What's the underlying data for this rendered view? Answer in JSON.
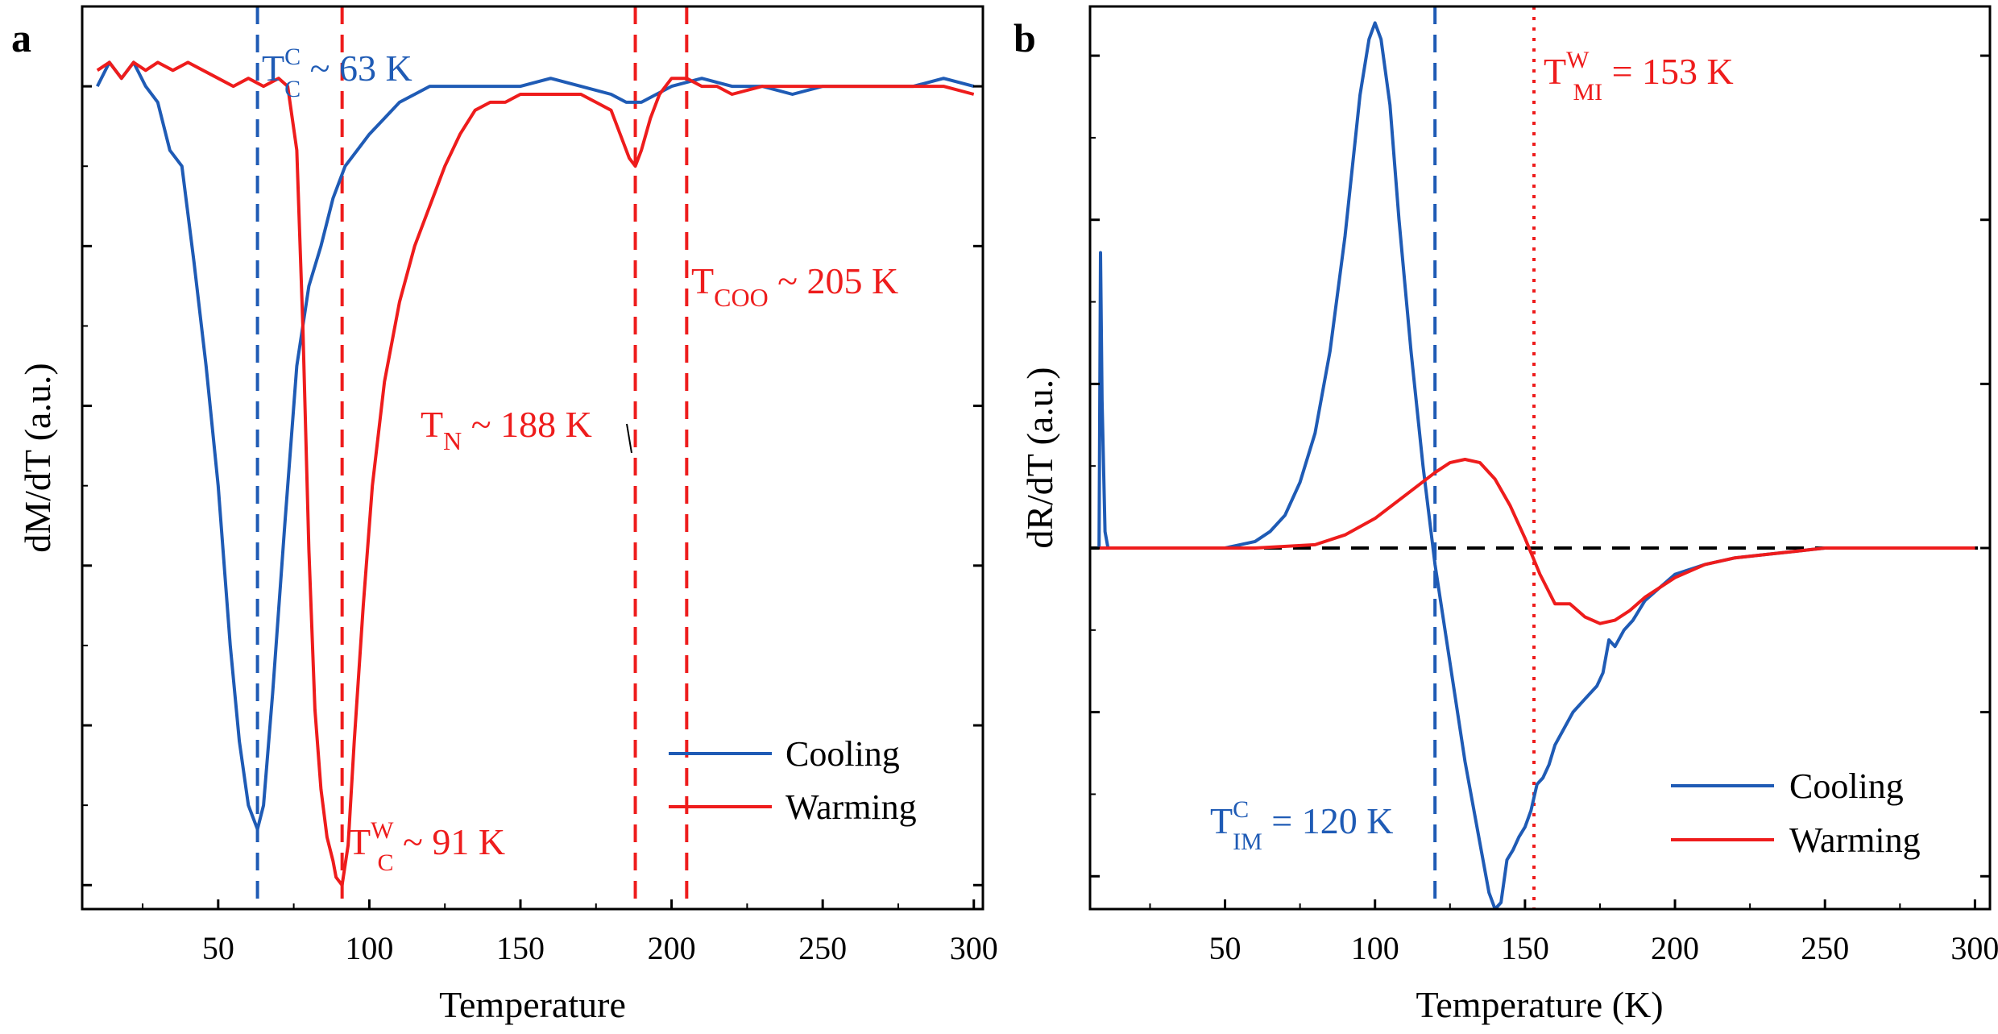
{
  "chart_data": [
    {
      "panel_label": "a",
      "type": "line",
      "xlabel": "Temperature",
      "ylabel": "dM/dT (a.u.)",
      "xlim": [
        5,
        303
      ],
      "ylim": [
        -1.03,
        0.1
      ],
      "xticks": [
        50,
        100,
        150,
        200,
        250,
        300
      ],
      "xtick_labels": [
        "50",
        "100",
        "150",
        "200",
        "250",
        "300"
      ],
      "yticks": [
        -1.0,
        -0.8,
        -0.6,
        -0.4,
        -0.2,
        0.0
      ],
      "legend": {
        "position": "bottom-right",
        "entries": [
          "Cooling",
          "Warming"
        ]
      },
      "colors": {
        "cooling": "#1f5bb5",
        "warming": "#ee1c1c"
      },
      "series": [
        {
          "name": "Cooling",
          "color": "#1f5bb5",
          "x": [
            10,
            14,
            18,
            22,
            26,
            30,
            34,
            38,
            42,
            46,
            50,
            54,
            57,
            60,
            62,
            63,
            65,
            68,
            72,
            76,
            80,
            84,
            88,
            92,
            96,
            100,
            105,
            110,
            115,
            120,
            130,
            140,
            150,
            160,
            170,
            180,
            185,
            190,
            195,
            200,
            210,
            220,
            230,
            240,
            250,
            260,
            270,
            280,
            290,
            300
          ],
          "y": [
            0.0,
            0.03,
            0.01,
            0.03,
            0.0,
            -0.02,
            -0.08,
            -0.1,
            -0.22,
            -0.35,
            -0.5,
            -0.7,
            -0.82,
            -0.9,
            -0.92,
            -0.93,
            -0.9,
            -0.76,
            -0.55,
            -0.35,
            -0.25,
            -0.2,
            -0.14,
            -0.1,
            -0.08,
            -0.06,
            -0.04,
            -0.02,
            -0.01,
            0.0,
            0.0,
            0.0,
            0.0,
            0.01,
            0.0,
            -0.01,
            -0.02,
            -0.02,
            -0.01,
            0.0,
            0.01,
            0.0,
            0.0,
            -0.01,
            0.0,
            0.0,
            0.0,
            0.0,
            0.01,
            0.0
          ]
        },
        {
          "name": "Warming",
          "color": "#ee1c1c",
          "x": [
            10,
            14,
            18,
            22,
            26,
            30,
            35,
            40,
            45,
            50,
            55,
            60,
            65,
            70,
            73,
            76,
            78,
            80,
            82,
            84,
            86,
            88,
            89,
            91,
            93,
            95,
            98,
            101,
            105,
            110,
            115,
            120,
            125,
            130,
            135,
            140,
            145,
            150,
            160,
            170,
            175,
            180,
            183,
            186,
            188,
            190,
            193,
            196,
            200,
            203,
            205,
            210,
            215,
            220,
            230,
            240,
            250,
            260,
            270,
            280,
            290,
            300
          ],
          "y": [
            0.02,
            0.03,
            0.01,
            0.03,
            0.02,
            0.03,
            0.02,
            0.03,
            0.02,
            0.01,
            0.0,
            0.01,
            0.0,
            0.01,
            0.0,
            -0.08,
            -0.3,
            -0.58,
            -0.78,
            -0.88,
            -0.94,
            -0.97,
            -0.99,
            -1.0,
            -0.95,
            -0.82,
            -0.65,
            -0.5,
            -0.37,
            -0.27,
            -0.2,
            -0.15,
            -0.1,
            -0.06,
            -0.03,
            -0.02,
            -0.02,
            -0.01,
            -0.01,
            -0.01,
            -0.02,
            -0.03,
            -0.06,
            -0.09,
            -0.1,
            -0.08,
            -0.04,
            -0.01,
            0.01,
            0.01,
            0.01,
            0.0,
            0.0,
            -0.01,
            0.0,
            0.0,
            0.0,
            0.0,
            0.0,
            0.0,
            0.0,
            -0.01
          ]
        }
      ],
      "vlines": [
        {
          "x": 63,
          "color": "#1f5bb5",
          "style": "dashed"
        },
        {
          "x": 91,
          "color": "#ee1c1c",
          "style": "dashed"
        },
        {
          "x": 188,
          "color": "#ee1c1c",
          "style": "dashed"
        },
        {
          "x": 205,
          "color": "#ee1c1c",
          "style": "dashed"
        }
      ],
      "annotations": [
        {
          "name": "tc-cooling",
          "base": "T",
          "sub": "C",
          "sup": "C",
          "text": " ~ 63 K",
          "color": "#1f5bb5"
        },
        {
          "name": "tc-warming",
          "base": "T",
          "sub": "C",
          "sup": "W",
          "text": " ~ 91 K",
          "color": "#ee1c1c"
        },
        {
          "name": "tn",
          "base": "T",
          "sub": "N",
          "sup": "",
          "text": " ~ 188 K",
          "color": "#ee1c1c"
        },
        {
          "name": "tcoo",
          "base": "T",
          "sub": "COO",
          "sup": "",
          "text": " ~ 205 K",
          "color": "#ee1c1c"
        }
      ]
    },
    {
      "panel_label": "b",
      "type": "line",
      "xlabel": "Temperature (K)",
      "ylabel": "dR/dT (a.u.)",
      "xlim": [
        5,
        305
      ],
      "ylim": [
        -1.1,
        1.65
      ],
      "xticks": [
        50,
        100,
        150,
        200,
        250,
        300
      ],
      "xtick_labels": [
        "50",
        "100",
        "150",
        "200",
        "250",
        "300"
      ],
      "yticks": [
        -1.0,
        -0.5,
        0.0,
        0.5,
        1.0,
        1.5
      ],
      "legend": {
        "position": "bottom-right",
        "entries": [
          "Cooling",
          "Warming"
        ]
      },
      "colors": {
        "cooling": "#1f5bb5",
        "warming": "#ee1c1c"
      },
      "series": [
        {
          "name": "Cooling",
          "color": "#1f5bb5",
          "x": [
            8,
            8.5,
            9,
            10,
            11,
            15,
            20,
            30,
            40,
            50,
            55,
            60,
            65,
            70,
            75,
            80,
            85,
            90,
            95,
            98,
            100,
            102,
            105,
            108,
            112,
            116,
            120,
            125,
            130,
            135,
            138,
            140,
            142,
            144,
            146,
            148,
            150,
            152,
            154,
            156,
            158,
            160,
            163,
            166,
            170,
            174,
            176,
            178,
            180,
            183,
            186,
            190,
            195,
            200,
            210,
            220,
            230,
            240,
            250,
            260,
            270,
            280,
            290,
            300
          ],
          "y": [
            0.0,
            0.9,
            0.45,
            0.05,
            0.0,
            0.0,
            0.0,
            0.0,
            0.0,
            0.0,
            0.01,
            0.02,
            0.05,
            0.1,
            0.2,
            0.35,
            0.6,
            0.95,
            1.38,
            1.55,
            1.6,
            1.55,
            1.35,
            1.0,
            0.6,
            0.25,
            -0.05,
            -0.35,
            -0.65,
            -0.9,
            -1.05,
            -1.1,
            -1.08,
            -0.95,
            -0.92,
            -0.88,
            -0.85,
            -0.8,
            -0.72,
            -0.7,
            -0.66,
            -0.6,
            -0.55,
            -0.5,
            -0.46,
            -0.42,
            -0.38,
            -0.28,
            -0.3,
            -0.25,
            -0.22,
            -0.16,
            -0.12,
            -0.08,
            -0.05,
            -0.03,
            -0.02,
            -0.01,
            0.0,
            0.0,
            0.0,
            0.0,
            0.0,
            0.0
          ]
        },
        {
          "name": "Warming",
          "color": "#ee1c1c",
          "x": [
            8,
            20,
            40,
            60,
            80,
            90,
            100,
            110,
            120,
            125,
            130,
            135,
            140,
            145,
            150,
            155,
            160,
            165,
            170,
            175,
            180,
            185,
            190,
            200,
            210,
            220,
            230,
            240,
            250,
            260,
            280,
            300
          ],
          "y": [
            0.0,
            0.0,
            0.0,
            0.0,
            0.01,
            0.04,
            0.09,
            0.16,
            0.23,
            0.26,
            0.27,
            0.26,
            0.21,
            0.13,
            0.03,
            -0.08,
            -0.17,
            -0.17,
            -0.21,
            -0.23,
            -0.22,
            -0.19,
            -0.15,
            -0.09,
            -0.05,
            -0.03,
            -0.02,
            -0.01,
            0.0,
            0.0,
            0.0,
            0.0
          ]
        }
      ],
      "hlines": [
        {
          "y": 0,
          "color": "#000000",
          "style": "dashed"
        }
      ],
      "vlines": [
        {
          "x": 120,
          "color": "#1f5bb5",
          "style": "dashed"
        },
        {
          "x": 153,
          "color": "#ee1c1c",
          "style": "dotted"
        }
      ],
      "annotations": [
        {
          "name": "tmi-warming",
          "base": "T",
          "sub": "MI",
          "sup": "W",
          "text": " = 153 K",
          "color": "#ee1c1c"
        },
        {
          "name": "tim-cooling",
          "base": "T",
          "sub": "IM",
          "sup": "C",
          "text": " = 120 K",
          "color": "#1f5bb5"
        }
      ]
    }
  ]
}
